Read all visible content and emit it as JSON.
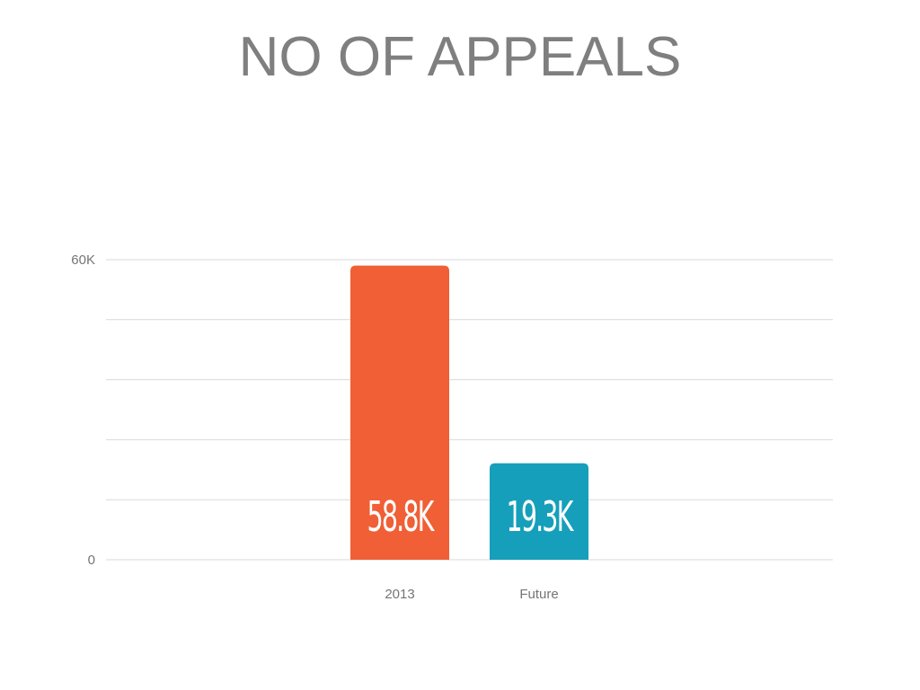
{
  "chart_data": {
    "type": "bar",
    "title": "NO OF APPEALS",
    "categories": [
      "2013",
      "Future"
    ],
    "values": [
      58800,
      19300
    ],
    "value_labels": [
      "58.8K",
      "19.3K"
    ],
    "bar_colors": [
      "#f05f35",
      "#169fba"
    ],
    "ylim": [
      0,
      60000
    ],
    "y_tick_values": [
      0,
      60000
    ],
    "y_tick_labels": [
      "0",
      "60K"
    ],
    "gridline_count": 6,
    "grid": true,
    "xlabel": "",
    "ylabel": ""
  }
}
